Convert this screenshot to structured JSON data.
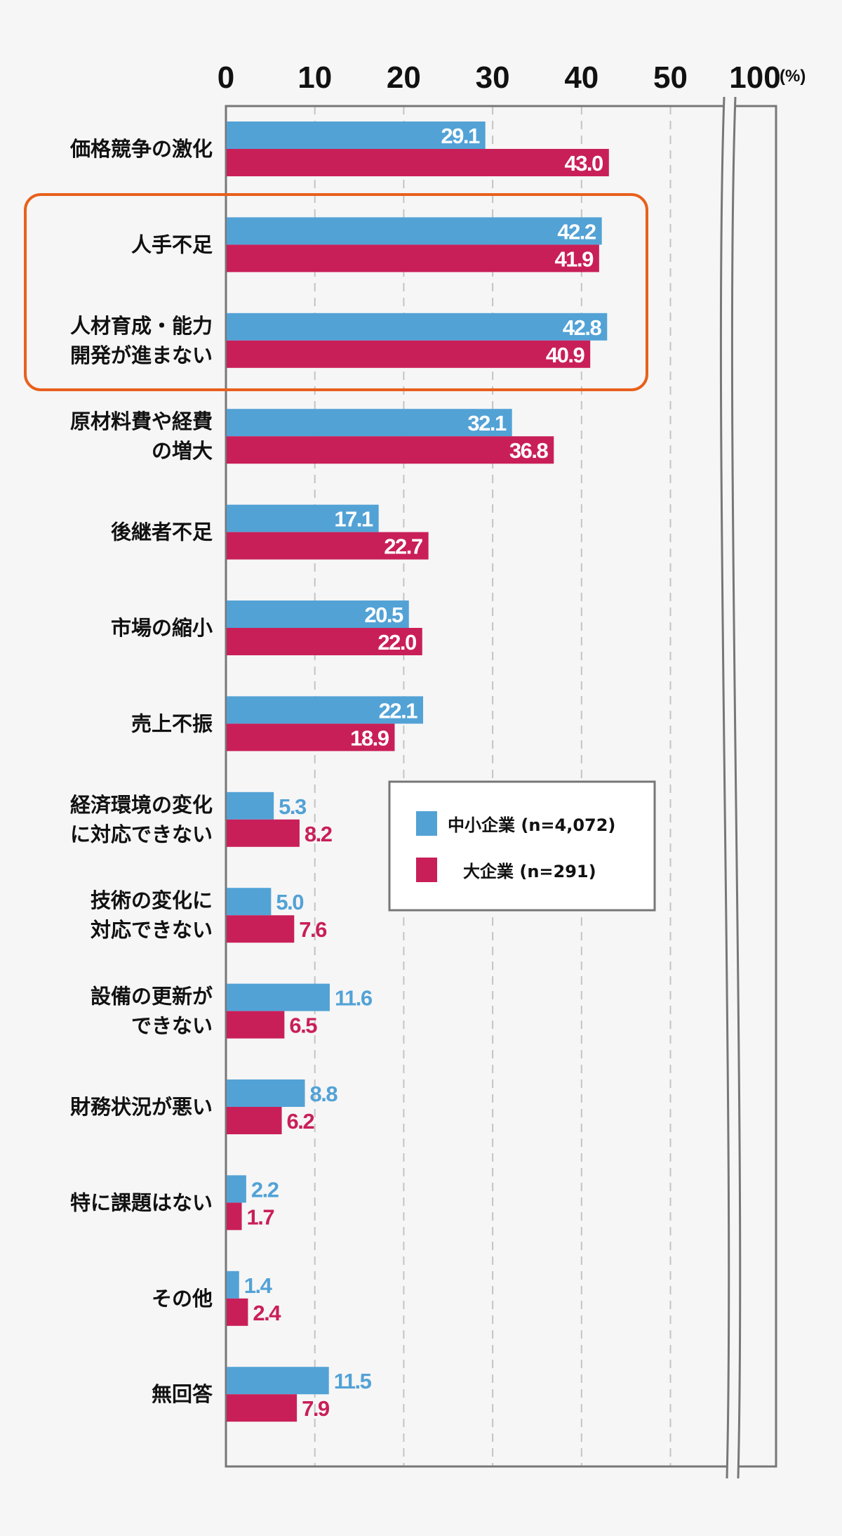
{
  "chart_data": {
    "type": "bar",
    "orientation": "horizontal",
    "unit_label": "(%)",
    "xticks": [
      "0",
      "10",
      "20",
      "30",
      "40",
      "50",
      "100"
    ],
    "xlim": [
      0,
      55
    ],
    "axis_break": "between 50 and 100",
    "grid": true,
    "categories": [
      [
        "価格競争の激化"
      ],
      [
        "人手不足"
      ],
      [
        "人材育成・能力",
        "開発が進まない"
      ],
      [
        "原材料費や経費",
        "の増大"
      ],
      [
        "後継者不足"
      ],
      [
        "市場の縮小"
      ],
      [
        "売上不振"
      ],
      [
        "経済環境の変化",
        "に対応できない"
      ],
      [
        "技術の変化に",
        "対応できない"
      ],
      [
        "設備の更新が",
        "できない"
      ],
      [
        "財務状況が悪い"
      ],
      [
        "特に課題はない"
      ],
      [
        "その他"
      ],
      [
        "無回答"
      ]
    ],
    "series": [
      {
        "name": "中小企業 (n=4,072)",
        "color": "#52a2d6",
        "values": [
          29.1,
          42.2,
          42.8,
          32.1,
          17.1,
          20.5,
          22.1,
          5.3,
          5.0,
          11.6,
          8.8,
          2.2,
          1.4,
          11.5
        ],
        "labels": [
          "29.1",
          "42.2",
          "42.8",
          "32.1",
          "17.1",
          "20.5",
          "22.1",
          "5.3",
          "5.0",
          "11.6",
          "8.8",
          "2.2",
          "1.4",
          "11.5"
        ]
      },
      {
        "name": "大企業 (n=291)",
        "color": "#c91f58",
        "values": [
          43.0,
          41.9,
          40.9,
          36.8,
          22.7,
          22.0,
          18.9,
          8.2,
          7.6,
          6.5,
          6.2,
          1.7,
          2.4,
          7.9
        ],
        "labels": [
          "43.0",
          "41.9",
          "40.9",
          "36.8",
          "22.7",
          "22.0",
          "18.9",
          "8.2",
          "7.6",
          "6.5",
          "6.2",
          "1.7",
          "2.4",
          "7.9"
        ]
      }
    ],
    "legend_placement": "center-right",
    "highlighted_categories": [
      "人手不足",
      "人材育成・能力開発が進まない"
    ],
    "highlight_color": "#e8601c"
  }
}
